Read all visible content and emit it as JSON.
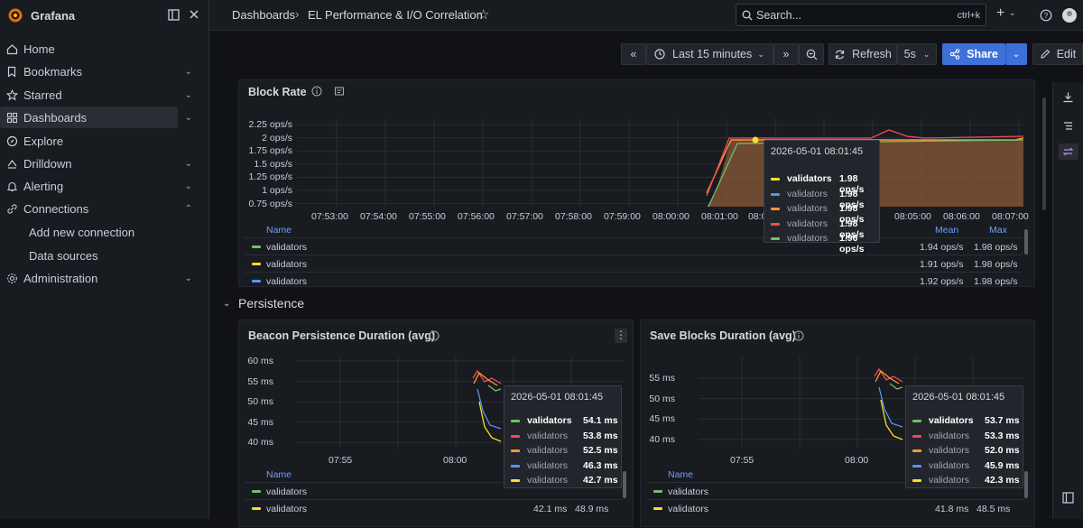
{
  "app": {
    "name": "Grafana"
  },
  "sidebar": {
    "items": [
      {
        "label": "Home"
      },
      {
        "label": "Bookmarks"
      },
      {
        "label": "Starred"
      },
      {
        "label": "Dashboards"
      },
      {
        "label": "Explore"
      },
      {
        "label": "Drilldown"
      },
      {
        "label": "Alerting"
      },
      {
        "label": "Connections"
      },
      {
        "label": "Administration"
      }
    ],
    "subitems": [
      {
        "label": "Add new connection"
      },
      {
        "label": "Data sources"
      }
    ]
  },
  "topbar": {
    "breadcrumb_root": "Dashboards",
    "breadcrumb_sep": "›",
    "breadcrumb_current": "EL Performance & I/O Correlation",
    "search_placeholder": "Search...",
    "search_shortcut": "ctrl+k"
  },
  "toolbar": {
    "time_range": "Last 15 minutes",
    "refresh_label": "Refresh",
    "refresh_interval": "5s",
    "share_label": "Share",
    "edit_label": "Edit"
  },
  "block_rate": {
    "title": "Block Rate",
    "y_ticks": [
      "2.25 ops/s",
      "2 ops/s",
      "1.75 ops/s",
      "1.5 ops/s",
      "1.25 ops/s",
      "1 ops/s",
      "0.75 ops/s"
    ],
    "x_ticks": [
      "07:53:00",
      "07:54:00",
      "07:55:00",
      "07:56:00",
      "07:57:00",
      "07:58:00",
      "07:59:00",
      "08:00:00",
      "08:01:00",
      "08:0",
      "08:05:00",
      "08:06:00",
      "08:07:00"
    ],
    "legend_headers": {
      "name": "Name",
      "mean": "Mean",
      "max": "Max"
    },
    "legend": [
      {
        "name": "validators",
        "color": "#73bf69",
        "mean": "1.94 ops/s",
        "max": "1.98 ops/s"
      },
      {
        "name": "validators",
        "color": "#fade2a",
        "mean": "1.91 ops/s",
        "max": "1.98 ops/s"
      },
      {
        "name": "validators",
        "color": "#5794f2",
        "mean": "1.92 ops/s",
        "max": "1.98 ops/s"
      }
    ],
    "tooltip": {
      "time": "2026-05-01 08:01:45",
      "rows": [
        {
          "name": "validators",
          "value": "1.98 ops/s",
          "color": "#fade2a",
          "bold": true
        },
        {
          "name": "validators",
          "value": "1.98 ops/s",
          "color": "#5794f2"
        },
        {
          "name": "validators",
          "value": "1.98 ops/s",
          "color": "#ff9830"
        },
        {
          "name": "validators",
          "value": "1.98 ops/s",
          "color": "#f2495c"
        },
        {
          "name": "validators",
          "value": "1.96 ops/s",
          "color": "#73bf69"
        }
      ]
    }
  },
  "persistence_row": {
    "title": "Persistence"
  },
  "beacon": {
    "title": "Beacon Persistence Duration (avg)",
    "y_ticks": [
      "60 ms",
      "55 ms",
      "50 ms",
      "45 ms",
      "40 ms"
    ],
    "x_ticks": [
      "07:55",
      "08:00"
    ],
    "legend_headers": {
      "name": "Name"
    },
    "legend": [
      {
        "name": "validators",
        "color": "#73bf69",
        "mean": "",
        "max": ""
      },
      {
        "name": "validators",
        "color": "#fade2a",
        "mean": "42.1 ms",
        "max": "48.9 ms"
      }
    ],
    "tooltip": {
      "time": "2026-05-01 08:01:45",
      "rows": [
        {
          "name": "validators",
          "value": "54.1 ms",
          "color": "#73bf69",
          "bold": true
        },
        {
          "name": "validators",
          "value": "53.8 ms",
          "color": "#f2495c"
        },
        {
          "name": "validators",
          "value": "52.5 ms",
          "color": "#ff9830"
        },
        {
          "name": "validators",
          "value": "46.3 ms",
          "color": "#5794f2"
        },
        {
          "name": "validators",
          "value": "42.7 ms",
          "color": "#fade2a"
        }
      ]
    }
  },
  "save_blocks": {
    "title": "Save Blocks Duration (avg)",
    "y_ticks": [
      "55 ms",
      "50 ms",
      "45 ms",
      "40 ms"
    ],
    "x_ticks": [
      "07:55",
      "08:00"
    ],
    "legend_headers": {
      "name": "Name"
    },
    "legend": [
      {
        "name": "validators",
        "color": "#73bf69",
        "mean": "",
        "max": ""
      },
      {
        "name": "validators",
        "color": "#fade2a",
        "mean": "41.8 ms",
        "max": "48.5 ms"
      }
    ],
    "tooltip": {
      "time": "2026-05-01 08:01:45",
      "rows": [
        {
          "name": "validators",
          "value": "53.7 ms",
          "color": "#73bf69",
          "bold": true
        },
        {
          "name": "validators",
          "value": "53.3 ms",
          "color": "#f2495c"
        },
        {
          "name": "validators",
          "value": "52.0 ms",
          "color": "#ff9830"
        },
        {
          "name": "validators",
          "value": "45.9 ms",
          "color": "#5794f2"
        },
        {
          "name": "validators",
          "value": "42.3 ms",
          "color": "#fade2a"
        }
      ]
    }
  }
}
